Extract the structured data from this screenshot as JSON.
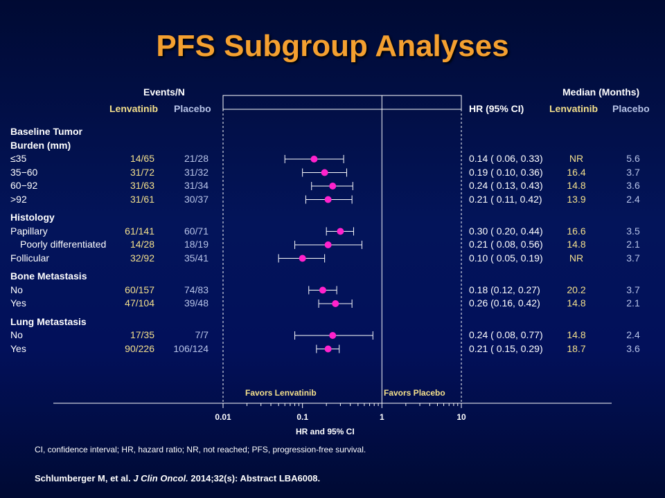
{
  "title": "PFS Subgroup Analyses",
  "headers": {
    "events_n": "Events/N",
    "lenvatinib": "Lenvatinib",
    "placebo": "Placebo",
    "hr_ci": "HR (95% CI)",
    "median": "Median (Months)",
    "median_lenvatinib": "Lenvatinib",
    "median_placebo": "Placebo"
  },
  "colors": {
    "title": "#f4a030",
    "lenvatinib_text": "#f4e08c",
    "placebo_text": "#b8c4e8",
    "marker": "#ff22cc",
    "line": "#ffffff"
  },
  "chart_data": {
    "type": "forest",
    "xscale": "log",
    "xlim": [
      0.01,
      10
    ],
    "xticks": [
      "0.01",
      "0.1",
      "1",
      "10"
    ],
    "xlabel": "HR and 95% CI",
    "favors_left": "Favors Lenvatinib",
    "favors_right": "Favors Placebo",
    "groups": [
      {
        "label": "Baseline Tumor",
        "label2": "Burden (mm)",
        "rows": [
          {
            "label": "≤35",
            "events_lenvatinib": "14/65",
            "events_placebo": "21/28",
            "hr": 0.14,
            "lo": 0.06,
            "hi": 0.33,
            "hr_text": "0.14 ( 0.06, 0.33)",
            "median_lenvatinib": "NR",
            "median_placebo": "5.6"
          },
          {
            "label": "35−60",
            "events_lenvatinib": "31/72",
            "events_placebo": "31/32",
            "hr": 0.19,
            "lo": 0.1,
            "hi": 0.36,
            "hr_text": "0.19 ( 0.10, 0.36)",
            "median_lenvatinib": "16.4",
            "median_placebo": "3.7"
          },
          {
            "label": "60−92",
            "events_lenvatinib": "31/63",
            "events_placebo": "31/34",
            "hr": 0.24,
            "lo": 0.13,
            "hi": 0.43,
            "hr_text": "0.24 ( 0.13, 0.43)",
            "median_lenvatinib": "14.8",
            "median_placebo": "3.6"
          },
          {
            "label": ">92",
            "events_lenvatinib": "31/61",
            "events_placebo": "30/37",
            "hr": 0.21,
            "lo": 0.11,
            "hi": 0.42,
            "hr_text": "0.21 ( 0.11, 0.42)",
            "median_lenvatinib": "13.9",
            "median_placebo": "2.4"
          }
        ]
      },
      {
        "label": "Histology",
        "rows": [
          {
            "label": "Papillary",
            "events_lenvatinib": "61/141",
            "events_placebo": "60/71",
            "hr": 0.3,
            "lo": 0.2,
            "hi": 0.44,
            "hr_text": "0.30 ( 0.20, 0.44)",
            "median_lenvatinib": "16.6",
            "median_placebo": "3.5"
          },
          {
            "label": "Poorly differentiated",
            "indent": true,
            "events_lenvatinib": "14/28",
            "events_placebo": "18/19",
            "hr": 0.21,
            "lo": 0.08,
            "hi": 0.56,
            "hr_text": "0.21 ( 0.08, 0.56)",
            "median_lenvatinib": "14.8",
            "median_placebo": "2.1"
          },
          {
            "label": "Follicular",
            "events_lenvatinib": "32/92",
            "events_placebo": "35/41",
            "hr": 0.1,
            "lo": 0.05,
            "hi": 0.19,
            "hr_text": "0.10 ( 0.05, 0.19)",
            "median_lenvatinib": "NR",
            "median_placebo": "3.7"
          }
        ]
      },
      {
        "label": "Bone Metastasis",
        "rows": [
          {
            "label": "No",
            "events_lenvatinib": "60/157",
            "events_placebo": "74/83",
            "hr": 0.18,
            "lo": 0.12,
            "hi": 0.27,
            "hr_text": "0.18 (0.12, 0.27)",
            "median_lenvatinib": "20.2",
            "median_placebo": "3.7"
          },
          {
            "label": "Yes",
            "events_lenvatinib": "47/104",
            "events_placebo": "39/48",
            "hr": 0.26,
            "lo": 0.16,
            "hi": 0.42,
            "hr_text": "0.26 (0.16, 0.42)",
            "median_lenvatinib": "14.8",
            "median_placebo": "2.1"
          }
        ]
      },
      {
        "label": "Lung Metastasis",
        "rows": [
          {
            "label": "No",
            "events_lenvatinib": "17/35",
            "events_placebo": "7/7",
            "hr": 0.24,
            "lo": 0.08,
            "hi": 0.77,
            "hr_text": "0.24 ( 0.08, 0.77)",
            "median_lenvatinib": "14.8",
            "median_placebo": "2.4"
          },
          {
            "label": "Yes",
            "events_lenvatinib": "90/226",
            "events_placebo": "106/124",
            "hr": 0.21,
            "lo": 0.15,
            "hi": 0.29,
            "hr_text": "0.21 ( 0.15, 0.29)",
            "median_lenvatinib": "18.7",
            "median_placebo": "3.6"
          }
        ]
      }
    ]
  },
  "footnote": "CI, confidence interval; HR, hazard ratio; NR, not reached; PFS, progression-free survival.",
  "citation": {
    "authors": "Schlumberger M, et al.",
    "journal": "J Clin Oncol.",
    "details": "2014;32(s): Abstract LBA6008."
  }
}
